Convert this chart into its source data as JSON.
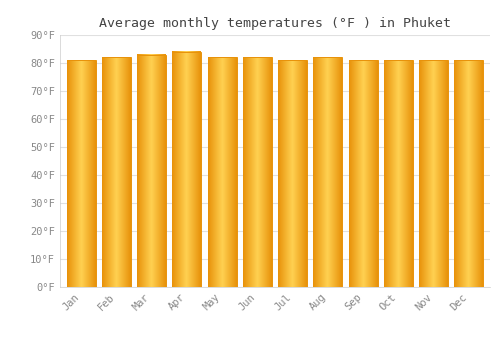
{
  "months": [
    "Jan",
    "Feb",
    "Mar",
    "Apr",
    "May",
    "Jun",
    "Jul",
    "Aug",
    "Sep",
    "Oct",
    "Nov",
    "Dec"
  ],
  "values": [
    81,
    82,
    83,
    84,
    82,
    82,
    81,
    82,
    81,
    81,
    81,
    81
  ],
  "bar_left_color": "#E8920A",
  "bar_mid_color": "#FFD050",
  "bar_right_color": "#E8920A",
  "title": "Average monthly temperatures (°F ) in Phuket",
  "ylim": [
    0,
    90
  ],
  "yticks": [
    0,
    10,
    20,
    30,
    40,
    50,
    60,
    70,
    80,
    90
  ],
  "ytick_labels": [
    "0°F",
    "10°F",
    "20°F",
    "30°F",
    "40°F",
    "50°F",
    "60°F",
    "70°F",
    "80°F",
    "90°F"
  ],
  "bg_color": "#ffffff",
  "plot_bg_color": "#ffffff",
  "grid_color": "#e0e0e0",
  "title_color": "#444444",
  "tick_color": "#888888",
  "title_fontsize": 9.5,
  "tick_fontsize": 7.5,
  "bar_width": 0.82,
  "n_gradient_steps": 50
}
